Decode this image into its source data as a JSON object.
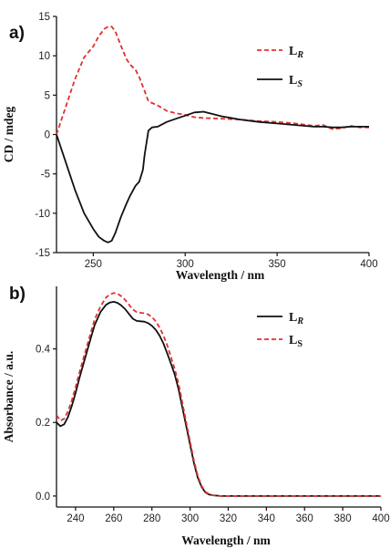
{
  "chart_data": [
    {
      "panel_label": "a)",
      "type": "line",
      "xlabel": "Wavelength / nm",
      "ylabel": "CD / mdeg",
      "xlim": [
        230,
        400
      ],
      "ylim": [
        -15,
        15
      ],
      "xticks": [
        250,
        300,
        350,
        400
      ],
      "yticks": [
        15,
        10,
        5,
        0,
        -5,
        -10,
        -15
      ],
      "legend_position": "top-right",
      "series": [
        {
          "name": "L",
          "subscript": "R",
          "subscript_italic": true,
          "color": "#e03030",
          "dashed": true,
          "x": [
            230,
            235,
            240,
            245,
            250,
            253,
            256,
            258,
            260,
            262,
            265,
            268,
            270,
            273,
            275,
            278,
            280,
            285,
            290,
            295,
            300,
            305,
            310,
            320,
            330,
            340,
            350,
            360,
            370,
            375,
            380,
            385,
            390,
            395,
            400
          ],
          "y": [
            0,
            3.5,
            7,
            9.8,
            11.2,
            12.5,
            13.4,
            13.7,
            13.7,
            13.1,
            11.3,
            9.6,
            8.9,
            8.2,
            7.3,
            5.5,
            4.2,
            3.7,
            3.0,
            2.7,
            2.5,
            2.2,
            2.1,
            2.0,
            1.9,
            1.7,
            1.6,
            1.4,
            1.1,
            1.2,
            0.7,
            0.8,
            1.1,
            0.9,
            0.9
          ]
        },
        {
          "name": "L",
          "subscript": "S",
          "subscript_italic": true,
          "color": "#111111",
          "dashed": false,
          "x": [
            230,
            235,
            240,
            245,
            250,
            253,
            256,
            258,
            260,
            262,
            265,
            268,
            270,
            273,
            275,
            277,
            278,
            280,
            282,
            285,
            290,
            295,
            300,
            305,
            310,
            320,
            330,
            340,
            350,
            360,
            370,
            375,
            380,
            385,
            390,
            395,
            400
          ],
          "y": [
            0,
            -3.5,
            -7,
            -10,
            -12,
            -13,
            -13.5,
            -13.7,
            -13.5,
            -12.5,
            -10.5,
            -8.8,
            -7.8,
            -6.5,
            -6,
            -4.5,
            -2.5,
            0.5,
            0.9,
            1.0,
            1.6,
            2.0,
            2.4,
            2.8,
            2.9,
            2.3,
            1.9,
            1.6,
            1.4,
            1.2,
            1.0,
            1.0,
            0.9,
            0.9,
            1.0,
            1.0,
            1.0
          ]
        }
      ]
    },
    {
      "panel_label": "b)",
      "type": "line",
      "xlabel": "Wavelength / nm",
      "ylabel": "Absorbance / a.u.",
      "xlim": [
        230,
        400
      ],
      "ylim": [
        -0.03,
        0.57
      ],
      "xticks": [
        240,
        260,
        280,
        300,
        320,
        340,
        360,
        380,
        400
      ],
      "yticks": [
        0.0,
        0.2,
        0.4
      ],
      "ytick_labels": [
        "0.0",
        "0.2",
        "0.4"
      ],
      "legend_position": "top-right",
      "series": [
        {
          "name": "L",
          "subscript": "R",
          "subscript_italic": true,
          "color": "#111111",
          "dashed": false,
          "x": [
            230,
            232,
            234,
            236,
            238,
            240,
            242,
            245,
            248,
            250,
            253,
            256,
            258,
            260,
            262,
            264,
            266,
            268,
            270,
            272,
            274,
            276,
            278,
            280,
            282,
            284,
            286,
            288,
            290,
            292,
            294,
            296,
            298,
            300,
            302,
            304,
            306,
            308,
            310,
            312,
            314,
            316,
            318,
            320,
            330,
            340,
            360,
            380,
            400
          ],
          "y": [
            0.2,
            0.19,
            0.195,
            0.215,
            0.245,
            0.28,
            0.32,
            0.375,
            0.43,
            0.465,
            0.5,
            0.52,
            0.526,
            0.528,
            0.525,
            0.518,
            0.508,
            0.495,
            0.482,
            0.476,
            0.475,
            0.474,
            0.47,
            0.463,
            0.452,
            0.436,
            0.415,
            0.388,
            0.36,
            0.33,
            0.29,
            0.24,
            0.19,
            0.14,
            0.09,
            0.05,
            0.025,
            0.01,
            0.004,
            0.002,
            0.001,
            0.0,
            0.0,
            0.0,
            0.0,
            0.0,
            0.0,
            0.0,
            0.0
          ]
        },
        {
          "name": "L",
          "subscript": "S",
          "subscript_italic": false,
          "color": "#e03030",
          "dashed": true,
          "x": [
            230,
            232,
            234,
            236,
            238,
            240,
            242,
            245,
            248,
            250,
            253,
            256,
            258,
            260,
            262,
            264,
            266,
            268,
            270,
            272,
            274,
            276,
            278,
            280,
            282,
            284,
            286,
            288,
            290,
            292,
            294,
            296,
            298,
            300,
            302,
            304,
            306,
            308,
            310,
            312,
            314,
            316,
            318,
            320,
            330,
            340,
            360,
            380,
            400
          ],
          "y": [
            0.22,
            0.205,
            0.21,
            0.23,
            0.26,
            0.295,
            0.335,
            0.39,
            0.445,
            0.48,
            0.515,
            0.54,
            0.548,
            0.552,
            0.55,
            0.543,
            0.533,
            0.52,
            0.507,
            0.5,
            0.498,
            0.497,
            0.494,
            0.487,
            0.475,
            0.458,
            0.437,
            0.41,
            0.378,
            0.345,
            0.305,
            0.253,
            0.2,
            0.148,
            0.097,
            0.055,
            0.028,
            0.012,
            0.005,
            0.002,
            0.001,
            0.0,
            0.0,
            0.0,
            0.0,
            0.0,
            0.0,
            0.0,
            0.0
          ]
        }
      ]
    }
  ]
}
